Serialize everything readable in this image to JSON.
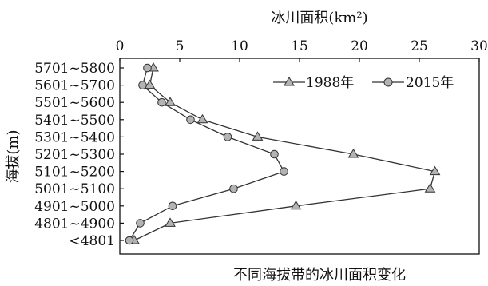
{
  "chart_data": {
    "type": "line",
    "orientation": "horizontal",
    "title": "",
    "caption": "不同海拔带的冰川面积变化",
    "xlabel": "冰川面积(km²)",
    "ylabel": "海拔(m)",
    "xlim": [
      0,
      30
    ],
    "x_ticks": [
      "0",
      "5",
      "10",
      "15",
      "20",
      "25",
      "30"
    ],
    "categories": [
      "5701~5800",
      "5601~5700",
      "5501~5600",
      "5401~5500",
      "5301~5400",
      "5201~5300",
      "5101~5200",
      "5001~5100",
      "4901~5000",
      "4801~4900",
      "<4801"
    ],
    "series": [
      {
        "name": "1988年",
        "marker": "triangle",
        "values": [
          2.8,
          2.5,
          4.2,
          6.9,
          11.5,
          19.5,
          26.3,
          25.9,
          14.7,
          4.2,
          1.2
        ]
      },
      {
        "name": "2015年",
        "marker": "circle",
        "values": [
          2.3,
          1.9,
          3.5,
          5.9,
          9.0,
          12.9,
          13.7,
          9.5,
          4.4,
          1.7,
          0.8
        ]
      }
    ],
    "legend_position": "top-right",
    "grid": false
  }
}
